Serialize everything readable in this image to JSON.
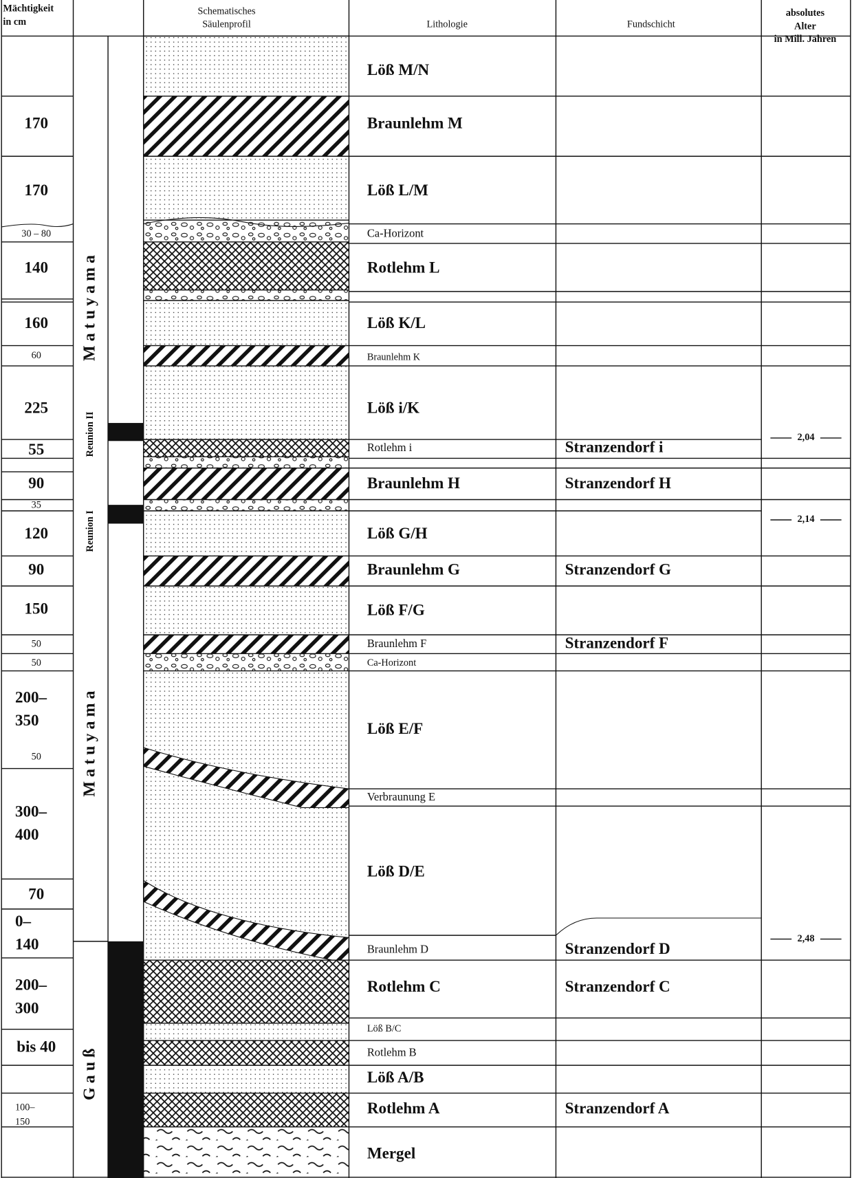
{
  "header": {
    "thickness": [
      "Mächtigkeit",
      "in cm"
    ],
    "profile": [
      "Schematisches",
      "Säulenprofil"
    ],
    "lithology": "Lithologie",
    "find_layer": "Fundschicht",
    "age": [
      "absolutes",
      "Alter",
      "in Mill. Jahren"
    ]
  },
  "magnetostratigraphy": [
    "M a t u y a m a",
    "Reunion II",
    "Reunion I",
    "M a t u y a m a",
    "G a u ß"
  ],
  "layers": [
    {
      "lithology": "Löß M/N"
    },
    {
      "lithology": "Braunlehm M"
    },
    {
      "lithology": "Löß L/M"
    },
    {
      "lithology": "Ca-Horizont"
    },
    {
      "lithology": "Rotlehm L"
    },
    {
      "lithology": "Löß K/L"
    },
    {
      "lithology": "Braunlehm K"
    },
    {
      "lithology": "Löß i/K"
    },
    {
      "lithology": "Rotlehm i",
      "find_layer": "Stranzendorf i"
    },
    {
      "lithology": "Braunlehm H",
      "find_layer": "Stranzendorf H"
    },
    {
      "lithology": "Löß G/H"
    },
    {
      "lithology": "Braunlehm G",
      "find_layer": "Stranzendorf G"
    },
    {
      "lithology": "Löß F/G"
    },
    {
      "lithology": "Braunlehm F",
      "find_layer": "Stranzendorf F"
    },
    {
      "lithology": "Ca-Horizont"
    },
    {
      "lithology": "Löß E/F"
    },
    {
      "lithology": "Verbraunung E"
    },
    {
      "lithology": "Löß D/E"
    },
    {
      "lithology": "Braunlehm D",
      "find_layer": "Stranzendorf D"
    },
    {
      "lithology": "Rotlehm C",
      "find_layer": "Stranzendorf C"
    },
    {
      "lithology": "Löß B/C"
    },
    {
      "lithology": "Rotlehm B"
    },
    {
      "lithology": "Löß A/B"
    },
    {
      "lithology": "Rotlehm A",
      "find_layer": "Stranzendorf A"
    },
    {
      "lithology": "Mergel"
    }
  ],
  "thickness": [
    [
      "170"
    ],
    [
      "170"
    ],
    [
      "30 – 80"
    ],
    [
      "140"
    ],
    [
      "160"
    ],
    [
      "60"
    ],
    [
      "225"
    ],
    [
      "55"
    ],
    [
      "90"
    ],
    [
      "35"
    ],
    [
      "120"
    ],
    [
      "90"
    ],
    [
      "150"
    ],
    [
      "50"
    ],
    [
      "50"
    ],
    [
      "200–",
      "350"
    ],
    [
      "50"
    ],
    [
      "300–",
      "400"
    ],
    [
      "70"
    ],
    [
      "0–",
      "140"
    ],
    [
      "200–",
      "300"
    ],
    [
      "bis 40"
    ],
    [
      "100–",
      "150"
    ]
  ],
  "ages": [
    "2,04",
    "2,14",
    "2,48"
  ]
}
